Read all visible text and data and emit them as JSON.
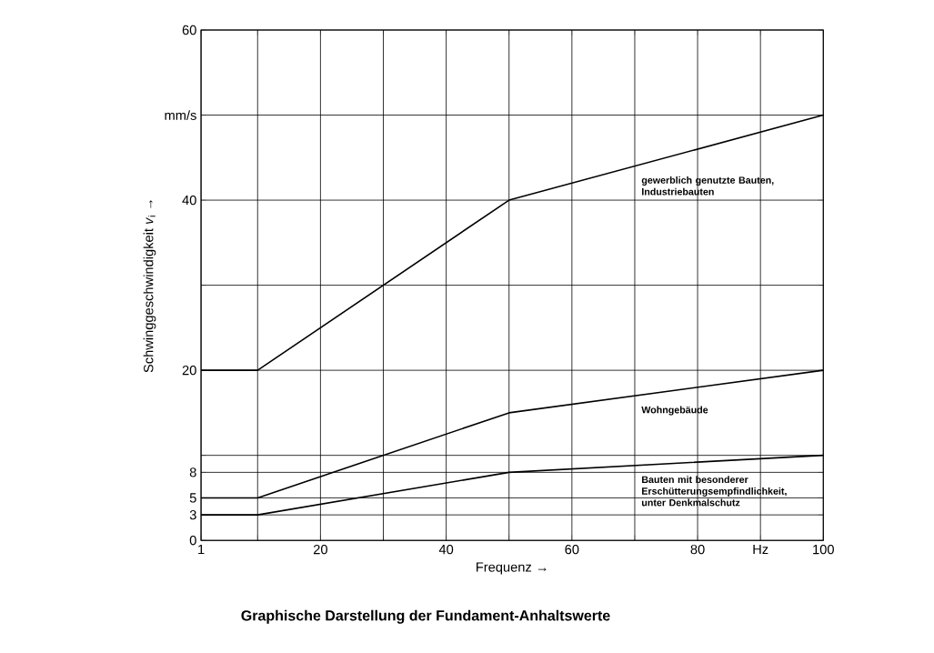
{
  "chart_data": {
    "type": "line",
    "title": "Graphische Darstellung der Fundament-Anhaltswerte",
    "xlabel": "Frequenz →",
    "ylabel": "Schwinggeschwindigkeit *v*$_{i}$ →",
    "x": [
      1,
      10,
      50,
      100
    ],
    "series": [
      {
        "name": "gewerblich genutzte Bauten, Industriebauten",
        "color": "#000000",
        "values": [
          20,
          20,
          40,
          50
        ]
      },
      {
        "name": "Wohngebäude",
        "color": "#000000",
        "values": [
          5,
          5,
          15,
          20
        ]
      },
      {
        "name": "Bauten mit besonderer Erschütterungsempfindlichkeit, unter Denkmalschutz",
        "color": "#000000",
        "values": [
          3,
          3,
          8,
          10
        ]
      }
    ],
    "xlim": [
      1,
      100
    ],
    "ylim": [
      0,
      60
    ],
    "xticks": [
      1,
      {
        "value": 10,
        "label": null
      },
      20,
      {
        "value": 30,
        "label": null
      },
      40,
      {
        "value": 50,
        "label": null
      },
      60,
      {
        "value": 70,
        "label": null
      },
      80,
      {
        "value": 90,
        "label": "Hz"
      },
      100
    ],
    "yticks": [
      0,
      3,
      5,
      8,
      {
        "value": 10,
        "label": null
      },
      20,
      {
        "value": 30,
        "label": null
      },
      40,
      {
        "value": 50,
        "label": "mm/s"
      },
      60
    ],
    "grid": true,
    "marker": "none",
    "line_style": "solid"
  }
}
